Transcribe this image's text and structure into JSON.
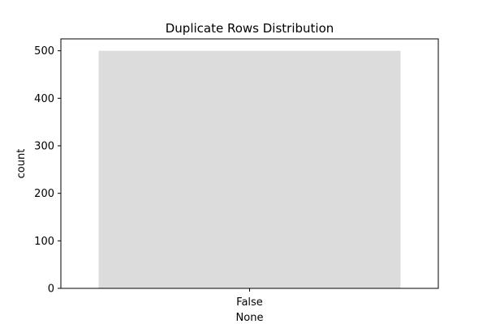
{
  "chart_data": {
    "type": "bar",
    "title": "Duplicate Rows Distribution",
    "xlabel": "None",
    "ylabel": "count",
    "categories": [
      "False"
    ],
    "values": [
      500
    ],
    "ylim": [
      0,
      525
    ],
    "yticks": [
      0,
      100,
      200,
      300,
      400,
      500
    ],
    "grid": false,
    "bar_color": "#dcdcdc"
  }
}
